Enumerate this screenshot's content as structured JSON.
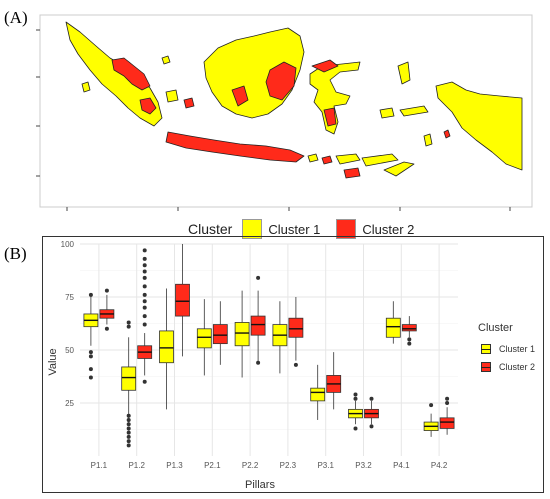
{
  "figure": {
    "panel_a_label": "(A)",
    "panel_b_label": "(B)"
  },
  "colors": {
    "cluster_1": "#ffff00",
    "cluster_2": "#ff2a1a",
    "map_background": "#ffffff",
    "grid": "#ebebeb"
  },
  "map": {
    "legend_title": "Cluster",
    "legend_items": [
      "Cluster 1",
      "Cluster 2"
    ]
  },
  "chart_data": {
    "type": "box",
    "title": "",
    "xlabel": "Pillars",
    "ylabel": "Value",
    "ylim": [
      0,
      100
    ],
    "yticks": [
      25,
      50,
      75,
      100
    ],
    "categories": [
      "P1.1",
      "P1.2",
      "P1.3",
      "P2.1",
      "P2.2",
      "P2.3",
      "P3.1",
      "P3.2",
      "P4.1",
      "P4.2"
    ],
    "legend_title": "Cluster",
    "series": [
      {
        "name": "Cluster 1",
        "color": "#ffff00",
        "boxes": [
          {
            "min": 52,
            "q1": 61,
            "median": 64,
            "q3": 67,
            "max": 76,
            "outliers": [
              37,
              41,
              47,
              49,
              76
            ]
          },
          {
            "min": 15,
            "q1": 31,
            "median": 37,
            "q3": 42,
            "max": 56,
            "outliers": [
              5,
              7,
              9,
              11,
              13,
              15,
              17,
              19,
              61,
              63
            ]
          },
          {
            "min": 22,
            "q1": 44,
            "median": 51,
            "q3": 59,
            "max": 79,
            "outliers": []
          },
          {
            "min": 38,
            "q1": 51,
            "median": 56,
            "q3": 60,
            "max": 74,
            "outliers": []
          },
          {
            "min": 37,
            "q1": 52,
            "median": 58,
            "q3": 63,
            "max": 78,
            "outliers": []
          },
          {
            "min": 39,
            "q1": 52,
            "median": 57,
            "q3": 62,
            "max": 73,
            "outliers": []
          },
          {
            "min": 17,
            "q1": 26,
            "median": 30,
            "q3": 32,
            "max": 43,
            "outliers": []
          },
          {
            "min": 15,
            "q1": 18,
            "median": 20,
            "q3": 22,
            "max": 26,
            "outliers": [
              13,
              27,
              29
            ]
          },
          {
            "min": 53,
            "q1": 56,
            "median": 61,
            "q3": 65,
            "max": 73,
            "outliers": []
          },
          {
            "min": 9,
            "q1": 12,
            "median": 14,
            "q3": 16,
            "max": 20,
            "outliers": [
              24
            ]
          }
        ]
      },
      {
        "name": "Cluster 2",
        "color": "#ff2a1a",
        "boxes": [
          {
            "min": 62,
            "q1": 65,
            "median": 67,
            "q3": 69,
            "max": 76,
            "outliers": [
              60,
              78
            ]
          },
          {
            "min": 38,
            "q1": 46,
            "median": 49,
            "q3": 52,
            "max": 58,
            "outliers": [
              35,
              62,
              66,
              70,
              73,
              76,
              80,
              84,
              87,
              90,
              93,
              97
            ]
          },
          {
            "min": 47,
            "q1": 66,
            "median": 73,
            "q3": 81,
            "max": 100,
            "outliers": []
          },
          {
            "min": 43,
            "q1": 53,
            "median": 57,
            "q3": 62,
            "max": 73,
            "outliers": []
          },
          {
            "min": 44,
            "q1": 57,
            "median": 62,
            "q3": 66,
            "max": 78,
            "outliers": [
              44,
              84
            ]
          },
          {
            "min": 45,
            "q1": 56,
            "median": 60,
            "q3": 65,
            "max": 75,
            "outliers": [
              43
            ]
          },
          {
            "min": 22,
            "q1": 30,
            "median": 34,
            "q3": 38,
            "max": 49,
            "outliers": []
          },
          {
            "min": 15,
            "q1": 18,
            "median": 20,
            "q3": 22,
            "max": 26,
            "outliers": [
              14,
              27
            ]
          },
          {
            "min": 56,
            "q1": 59,
            "median": 60,
            "q3": 62,
            "max": 66,
            "outliers": [
              53,
              55
            ]
          },
          {
            "min": 10,
            "q1": 13,
            "median": 16,
            "q3": 18,
            "max": 23,
            "outliers": [
              25,
              27
            ]
          }
        ]
      }
    ],
    "grid": true,
    "legend_position": "right"
  }
}
